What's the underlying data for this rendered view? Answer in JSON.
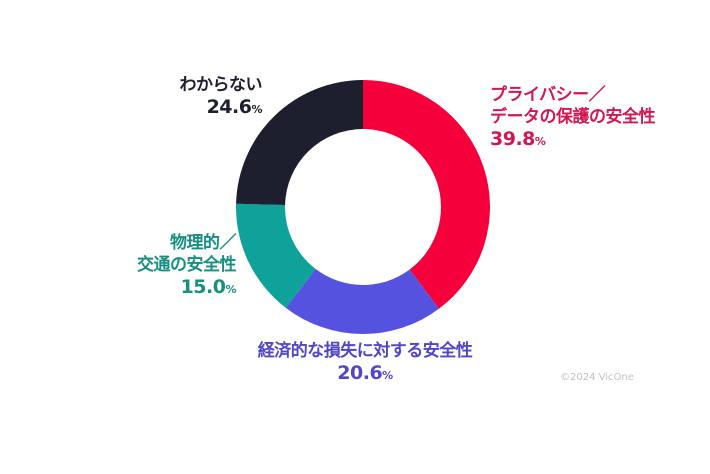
{
  "chart_data": {
    "type": "pie",
    "donut": true,
    "title": "",
    "start": "top",
    "direction": "clockwise",
    "slices": [
      {
        "label_lines": [
          "プライバシー／",
          "データの保護の安全性"
        ],
        "value": 39.8,
        "color": "#f5003a",
        "text_color": "#d21650"
      },
      {
        "label_lines": [
          "経済的な損失に対する安全性"
        ],
        "value": 20.6,
        "color": "#5552e0",
        "text_color": "#5046c6"
      },
      {
        "label_lines": [
          "物理的／",
          "交通の安全性"
        ],
        "value": 15.0,
        "color": "#0ea29a",
        "text_color": "#168f80"
      },
      {
        "label_lines": [
          "わからない"
        ],
        "value": 24.6,
        "color": "#1e1f2e",
        "text_color": "#1e1f2e"
      }
    ],
    "unit": "%"
  },
  "copyright": "©2024 VicOne"
}
